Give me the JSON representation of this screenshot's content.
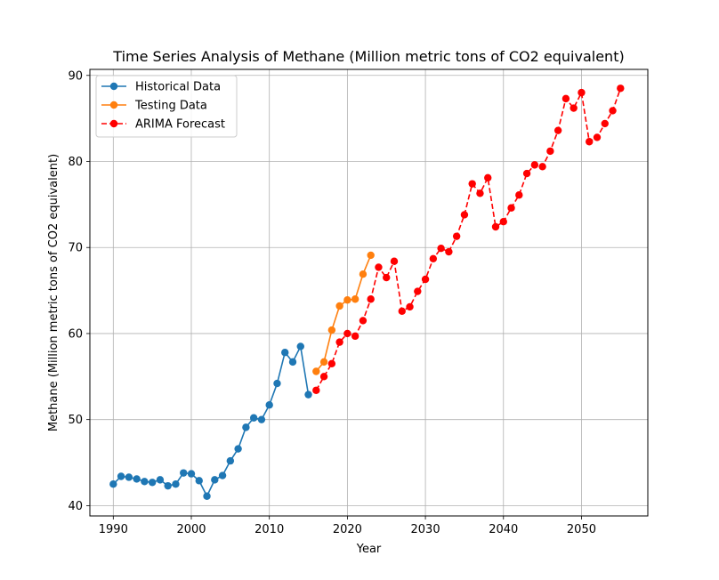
{
  "chart_data": {
    "type": "line",
    "title": "Time Series Analysis of Methane (Million metric tons of CO2 equivalent)",
    "xlabel": "Year",
    "ylabel": "Methane (Million metric tons of CO2 equivalent)",
    "xlim": [
      1987,
      2058.5
    ],
    "ylim": [
      38.8,
      90.7
    ],
    "xticks": [
      1990,
      2000,
      2010,
      2020,
      2030,
      2040,
      2050
    ],
    "yticks": [
      40,
      50,
      60,
      70,
      80,
      90
    ],
    "grid": true,
    "legend_position": "upper-left",
    "series": [
      {
        "name": "Historical Data",
        "color": "#1f77b4",
        "style": "solid",
        "marker": "circle",
        "x": [
          1990,
          1991,
          1992,
          1993,
          1994,
          1995,
          1996,
          1997,
          1998,
          1999,
          2000,
          2001,
          2002,
          2003,
          2004,
          2005,
          2006,
          2007,
          2008,
          2009,
          2010,
          2011,
          2012,
          2013,
          2014,
          2015
        ],
        "y": [
          42.5,
          43.4,
          43.3,
          43.1,
          42.8,
          42.7,
          43.0,
          42.3,
          42.5,
          43.8,
          43.7,
          42.9,
          41.1,
          43.0,
          43.5,
          45.2,
          46.6,
          49.1,
          50.2,
          50.0,
          51.7,
          54.2,
          57.8,
          56.7,
          58.5,
          52.9
        ]
      },
      {
        "name": "Testing Data",
        "color": "#ff7f0e",
        "style": "solid",
        "marker": "circle",
        "x": [
          2016,
          2017,
          2018,
          2019,
          2020,
          2021,
          2022,
          2023
        ],
        "y": [
          55.6,
          56.7,
          60.4,
          63.2,
          63.9,
          64.0,
          66.9,
          69.1
        ]
      },
      {
        "name": "ARIMA Forecast",
        "color": "#ff0000",
        "style": "dashed",
        "marker": "circle",
        "x": [
          2016,
          2017,
          2018,
          2019,
          2020,
          2021,
          2022,
          2023,
          2024,
          2025,
          2026,
          2027,
          2028,
          2029,
          2030,
          2031,
          2032,
          2033,
          2034,
          2035,
          2036,
          2037,
          2038,
          2039,
          2040,
          2041,
          2042,
          2043,
          2044,
          2045,
          2046,
          2047,
          2048,
          2049,
          2050,
          2051,
          2052,
          2053,
          2054,
          2055
        ],
        "y": [
          53.4,
          55.0,
          56.5,
          59.0,
          60.0,
          59.7,
          61.5,
          64.0,
          67.7,
          66.5,
          68.4,
          62.6,
          63.1,
          64.9,
          66.3,
          68.7,
          69.9,
          69.5,
          71.3,
          73.8,
          77.4,
          76.3,
          78.1,
          72.4,
          73.0,
          74.6,
          76.1,
          78.6,
          79.6,
          79.4,
          81.2,
          83.6,
          87.3,
          86.2,
          88.0,
          82.3,
          82.8,
          84.4,
          85.9,
          88.5
        ]
      }
    ]
  }
}
